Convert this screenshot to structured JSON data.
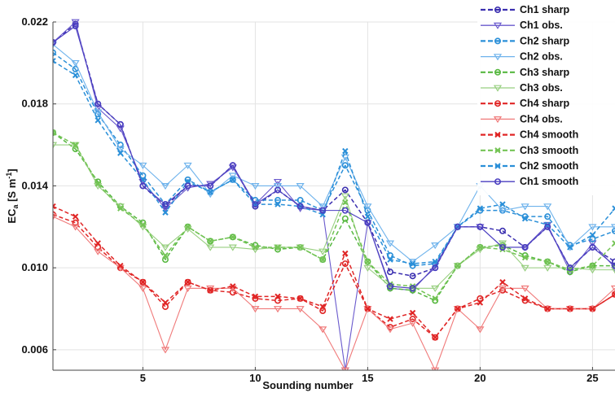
{
  "chart_data": {
    "type": "line",
    "xlabel": "Sounding number",
    "ylabel_main": "EC",
    "ylabel_sub": "a",
    "ylabel_unit": "[S m",
    "ylabel_exp": "-1",
    "ylabel_close": "]",
    "xlim": [
      1,
      26
    ],
    "ylim": [
      0.005,
      0.022
    ],
    "xticks": [
      5,
      10,
      15,
      20,
      25
    ],
    "yticks": [
      0.006,
      0.01,
      0.014,
      0.018,
      0.022
    ],
    "ytick_labels": [
      "0.006",
      "0.010",
      "0.014",
      "0.018",
      "0.022"
    ],
    "grid": true,
    "legend_position": "top-right (outside plot)",
    "x": [
      1,
      2,
      3,
      4,
      5,
      6,
      7,
      8,
      9,
      10,
      11,
      12,
      13,
      14,
      15,
      16,
      17,
      18,
      19,
      20,
      21,
      22,
      23,
      24,
      25,
      26
    ],
    "series": [
      {
        "name": "Ch1 sharp",
        "color": "#3b2fb0",
        "style": "dashed",
        "marker": "circle",
        "values": [
          0.021,
          0.0219,
          0.018,
          0.017,
          0.014,
          0.013,
          0.014,
          0.014,
          0.015,
          0.013,
          0.0138,
          0.013,
          0.0128,
          0.0138,
          0.0122,
          0.0098,
          0.0096,
          0.01,
          0.012,
          0.012,
          0.0118,
          0.011,
          0.012,
          0.01,
          0.011,
          0.0103
        ]
      },
      {
        "name": "Ch1 obs.",
        "color": "#6a5acd",
        "style": "solid",
        "marker": "triangle",
        "values": [
          0.021,
          0.022,
          0.0178,
          0.0168,
          0.0142,
          0.0129,
          0.0139,
          0.0141,
          0.0149,
          0.0131,
          0.0142,
          0.0129,
          0.0128,
          0.005,
          0.0122,
          0.009,
          0.0089,
          0.0101,
          0.012,
          0.012,
          0.011,
          0.011,
          0.0121,
          0.0098,
          0.0112,
          0.01
        ]
      },
      {
        "name": "Ch2 sharp",
        "color": "#2a8fd8",
        "style": "dashed",
        "marker": "circle",
        "values": [
          0.0205,
          0.0197,
          0.0175,
          0.016,
          0.0145,
          0.0131,
          0.0143,
          0.0137,
          0.0143,
          0.0133,
          0.0133,
          0.0133,
          0.0128,
          0.015,
          0.0128,
          0.0106,
          0.0101,
          0.0102,
          0.012,
          0.0128,
          0.0128,
          0.0125,
          0.0125,
          0.0111,
          0.0114,
          0.0118
        ]
      },
      {
        "name": "Ch2 obs.",
        "color": "#6fb3ec",
        "style": "solid",
        "marker": "triangle",
        "values": [
          0.0209,
          0.02,
          0.0176,
          0.0158,
          0.015,
          0.014,
          0.015,
          0.0136,
          0.0145,
          0.014,
          0.014,
          0.014,
          0.013,
          0.0154,
          0.013,
          0.0112,
          0.0103,
          0.0111,
          0.012,
          0.014,
          0.0128,
          0.013,
          0.013,
          0.011,
          0.012,
          0.012
        ]
      },
      {
        "name": "Ch3 sharp",
        "color": "#57b840",
        "style": "dashed",
        "marker": "circle",
        "values": [
          0.0166,
          0.0158,
          0.0142,
          0.013,
          0.0122,
          0.0104,
          0.012,
          0.0113,
          0.0115,
          0.0111,
          0.0109,
          0.011,
          0.0104,
          0.0124,
          0.0103,
          0.009,
          0.0089,
          0.0084,
          0.0101,
          0.011,
          0.0111,
          0.0106,
          0.0103,
          0.0098,
          0.0101,
          0.0101
        ]
      },
      {
        "name": "Ch3 obs.",
        "color": "#98cf80",
        "style": "solid",
        "marker": "triangle",
        "values": [
          0.016,
          0.016,
          0.014,
          0.013,
          0.012,
          0.011,
          0.0119,
          0.011,
          0.011,
          0.0109,
          0.011,
          0.011,
          0.0108,
          0.0135,
          0.01,
          0.0091,
          0.009,
          0.009,
          0.0101,
          0.0109,
          0.0112,
          0.01,
          0.01,
          0.01,
          0.0099,
          0.0099
        ]
      },
      {
        "name": "Ch4 sharp",
        "color": "#e02525",
        "style": "dashed",
        "marker": "circle",
        "values": [
          0.0126,
          0.0122,
          0.011,
          0.01,
          0.0093,
          0.0081,
          0.0093,
          0.0089,
          0.0088,
          0.0085,
          0.0084,
          0.0085,
          0.0079,
          0.0102,
          0.008,
          0.0071,
          0.0075,
          0.0066,
          0.008,
          0.0085,
          0.0089,
          0.0084,
          0.008,
          0.008,
          0.008,
          0.0087
        ]
      },
      {
        "name": "Ch4 obs.",
        "color": "#f07a7a",
        "style": "solid",
        "marker": "triangle",
        "values": [
          0.0125,
          0.012,
          0.0108,
          0.01,
          0.009,
          0.006,
          0.009,
          0.009,
          0.009,
          0.008,
          0.008,
          0.008,
          0.007,
          0.005,
          0.008,
          0.007,
          0.0073,
          0.005,
          0.008,
          0.007,
          0.009,
          0.009,
          0.008,
          0.008,
          0.008,
          0.009
        ]
      },
      {
        "name": "Ch4 smooth",
        "color": "#e02525",
        "style": "dashed",
        "marker": "x",
        "values": [
          0.013,
          0.0125,
          0.0112,
          0.0101,
          0.0093,
          0.0083,
          0.0093,
          0.0089,
          0.0091,
          0.0086,
          0.0086,
          0.0085,
          0.0081,
          0.0107,
          0.008,
          0.0075,
          0.0078,
          0.0066,
          0.008,
          0.0083,
          0.0093,
          0.0085,
          0.008,
          0.008,
          0.008,
          0.0087
        ]
      },
      {
        "name": "Ch3 smooth",
        "color": "#74c455",
        "style": "dashed",
        "marker": "x",
        "values": [
          0.0166,
          0.016,
          0.0141,
          0.0129,
          0.0121,
          0.0106,
          0.012,
          0.0113,
          0.0115,
          0.011,
          0.011,
          0.011,
          0.0104,
          0.0132,
          0.0103,
          0.0092,
          0.0091,
          0.0085,
          0.0101,
          0.011,
          0.0109,
          0.0105,
          0.0103,
          0.0099,
          0.0101,
          0.0112
        ]
      },
      {
        "name": "Ch2 smooth",
        "color": "#2a8fd8",
        "style": "dashed",
        "marker": "x",
        "values": [
          0.0201,
          0.0194,
          0.0172,
          0.0156,
          0.0143,
          0.0127,
          0.0142,
          0.0137,
          0.0143,
          0.0131,
          0.0131,
          0.013,
          0.0126,
          0.0157,
          0.0125,
          0.0104,
          0.0102,
          0.0103,
          0.012,
          0.0129,
          0.0131,
          0.0124,
          0.0121,
          0.011,
          0.0116,
          0.0129
        ]
      },
      {
        "name": "Ch1 smooth",
        "color": "#4a3ec0",
        "style": "solid",
        "marker": "circle-open",
        "values": [
          0.021,
          0.0218,
          0.018,
          0.017,
          0.014,
          0.0131,
          0.014,
          0.014,
          0.015,
          0.0131,
          0.0138,
          0.013,
          0.0128,
          0.0128,
          0.0122,
          0.0091,
          0.009,
          0.01,
          0.012,
          0.012,
          0.011,
          0.011,
          0.012,
          0.01,
          0.011,
          0.0101
        ]
      }
    ]
  }
}
